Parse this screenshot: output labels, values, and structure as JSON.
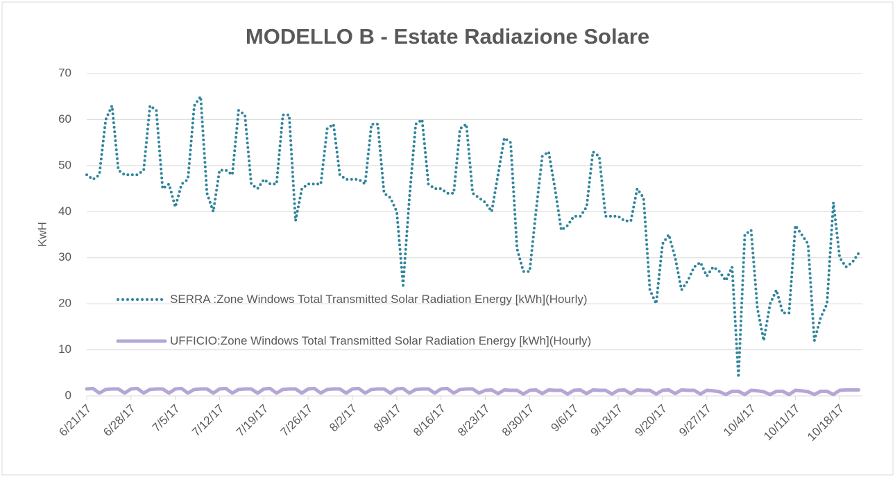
{
  "chart_data": {
    "type": "line",
    "title": "MODELLO B - Estate Radiazione Solare",
    "y_label": "KwH",
    "categories": [
      "6/21/17",
      null,
      null,
      null,
      null,
      null,
      null,
      "6/28/17",
      null,
      null,
      null,
      null,
      null,
      null,
      "7/5/17",
      null,
      null,
      null,
      null,
      null,
      null,
      "7/12/17",
      null,
      null,
      null,
      null,
      null,
      null,
      "7/19/17",
      null,
      null,
      null,
      null,
      null,
      null,
      "7/26/17",
      null,
      null,
      null,
      null,
      null,
      null,
      "8/2/17",
      null,
      null,
      null,
      null,
      null,
      null,
      "8/9/17",
      null,
      null,
      null,
      null,
      null,
      null,
      "8/16/17",
      null,
      null,
      null,
      null,
      null,
      null,
      "8/23/17",
      null,
      null,
      null,
      null,
      null,
      null,
      "8/30/17",
      null,
      null,
      null,
      null,
      null,
      null,
      "9/6/17",
      null,
      null,
      null,
      null,
      null,
      null,
      "9/13/17",
      null,
      null,
      null,
      null,
      null,
      null,
      "9/20/17",
      null,
      null,
      null,
      null,
      null,
      null,
      "9/27/17",
      null,
      null,
      null,
      null,
      null,
      null,
      "10/4/17",
      null,
      null,
      null,
      null,
      null,
      null,
      "10/11/17",
      null,
      null,
      null,
      null,
      null,
      null,
      "10/18/17",
      null,
      null,
      null
    ],
    "series": [
      {
        "name": "SERRA :Zone Windows Total Transmitted Solar Radiation Energy [kWh](Hourly)",
        "color": "#31859c",
        "style": "dotted",
        "values": [
          48,
          47,
          48,
          60,
          63,
          49,
          48,
          48,
          48,
          49,
          63,
          62,
          45,
          46,
          41,
          46,
          47,
          63,
          65,
          44,
          40,
          49,
          49,
          48,
          62,
          61,
          46,
          45,
          47,
          46,
          46,
          61,
          61,
          38,
          45,
          46,
          46,
          46,
          58,
          59,
          48,
          47,
          47,
          47,
          46,
          59,
          59,
          44,
          43,
          40,
          24,
          43,
          59,
          60,
          46,
          45,
          45,
          44,
          44,
          58,
          59,
          44,
          43,
          42,
          40,
          48,
          56,
          55,
          32,
          27,
          27,
          40,
          52,
          53,
          45,
          36,
          37,
          39,
          39,
          41,
          53,
          52,
          39,
          39,
          39,
          38,
          38,
          45,
          43,
          23,
          20,
          33,
          35,
          30,
          23,
          25,
          28,
          29,
          26,
          28,
          27,
          25,
          28,
          4,
          35,
          36,
          19,
          12,
          20,
          23,
          18,
          18,
          37,
          35,
          33,
          12,
          17,
          20,
          42,
          30,
          28,
          29,
          31
        ]
      },
      {
        "name": "UFFICIO:Zone Windows Total Transmitted Solar Radiation Energy [kWh](Hourly)",
        "color": "#b4a7d6",
        "style": "solid",
        "values": [
          1.5,
          1.6,
          0.6,
          1.4,
          1.5,
          1.5,
          0.6,
          1.5,
          1.6,
          0.6,
          1.4,
          1.5,
          1.5,
          0.6,
          1.5,
          1.6,
          0.6,
          1.4,
          1.5,
          1.5,
          0.6,
          1.5,
          1.6,
          0.6,
          1.4,
          1.5,
          1.5,
          0.6,
          1.5,
          1.6,
          0.6,
          1.4,
          1.5,
          1.5,
          0.6,
          1.5,
          1.6,
          0.6,
          1.4,
          1.5,
          1.5,
          0.6,
          1.5,
          1.6,
          0.6,
          1.4,
          1.5,
          1.5,
          0.6,
          1.5,
          1.6,
          0.6,
          1.4,
          1.5,
          1.5,
          0.6,
          1.5,
          1.6,
          0.6,
          1.4,
          1.5,
          1.5,
          0.6,
          1.2,
          1.3,
          0.5,
          1.3,
          1.2,
          1.2,
          0.4,
          1.2,
          1.3,
          0.5,
          1.3,
          1.2,
          1.2,
          0.4,
          1.2,
          1.3,
          0.5,
          1.3,
          1.2,
          1.2,
          0.4,
          1.2,
          1.3,
          0.5,
          1.3,
          1.2,
          1.2,
          0.4,
          1.2,
          1.3,
          0.5,
          1.3,
          1.2,
          1.2,
          0.4,
          1.2,
          1.1,
          0.9,
          0.3,
          1.0,
          1.0,
          0.3,
          1.2,
          1.1,
          0.9,
          0.3,
          1.0,
          1.0,
          0.3,
          1.2,
          1.1,
          0.9,
          0.3,
          1.0,
          1.0,
          0.3,
          1.2,
          1.3,
          1.3,
          1.3
        ]
      }
    ],
    "ylim": [
      0,
      70
    ],
    "yticks": [
      0,
      10,
      20,
      30,
      40,
      50,
      60,
      70
    ],
    "grid": true
  }
}
